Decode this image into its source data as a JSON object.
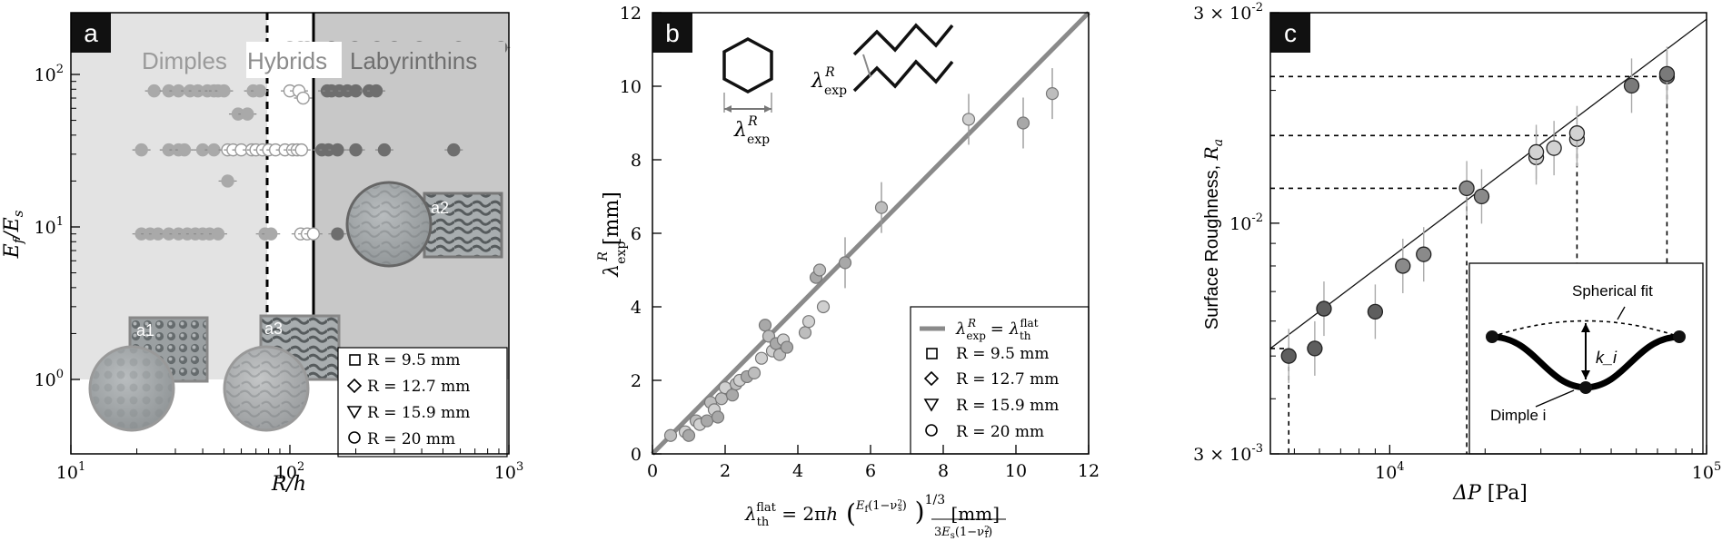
{
  "panels": {
    "a": {
      "letter": "a"
    },
    "b": {
      "letter": "b"
    },
    "c": {
      "letter": "c"
    }
  },
  "chart_data": [
    {
      "panel": "a",
      "type": "scatter",
      "title": "",
      "xlabel": "R/h",
      "ylabel": "E_f/E_s",
      "xscale": "log",
      "yscale": "log",
      "xlim": [
        10,
        1000
      ],
      "ylim": [
        1,
        150
      ],
      "xticks": [
        "10^1",
        "10^2",
        "10^3"
      ],
      "yticks": [
        "10^0",
        "10^1",
        "10^2"
      ],
      "regions": [
        "Dimples",
        "Hybrids",
        "Labyrinthins"
      ],
      "boundaries": [
        80,
        130
      ],
      "inset_labels": [
        "a1",
        "a2",
        "a3"
      ],
      "legend": [
        "R = 9.5 mm",
        "R = 12.7 mm",
        "R = 15.9 mm",
        "R = 20 mm"
      ],
      "legend_position": "bottom-right",
      "series": [
        {
          "regime": "Dimples",
          "points": [
            [
              21,
              9
            ],
            [
              23,
              9
            ],
            [
              25,
              9
            ],
            [
              28,
              9
            ],
            [
              31,
              9
            ],
            [
              34,
              9
            ],
            [
              37,
              9
            ],
            [
              40,
              9
            ],
            [
              43,
              9
            ],
            [
              47,
              9
            ],
            [
              77,
              9
            ],
            [
              82,
              9
            ],
            [
              21,
              32
            ],
            [
              28,
              32
            ],
            [
              31,
              32
            ],
            [
              33,
              32
            ],
            [
              40,
              32
            ],
            [
              45,
              32
            ],
            [
              52,
              20
            ],
            [
              24,
              78
            ],
            [
              28,
              78
            ],
            [
              31,
              78
            ],
            [
              35,
              78
            ],
            [
              38,
              78
            ],
            [
              42,
              78
            ],
            [
              45,
              78
            ],
            [
              47,
              78
            ],
            [
              50,
              78
            ],
            [
              58,
              55
            ],
            [
              64,
              55
            ],
            [
              68,
              78
            ],
            [
              73,
              78
            ]
          ]
        },
        {
          "regime": "Hybrids",
          "points": [
            [
              52,
              32
            ],
            [
              55,
              32
            ],
            [
              60,
              32
            ],
            [
              67,
              32
            ],
            [
              70,
              32
            ],
            [
              75,
              32
            ],
            [
              80,
              32
            ],
            [
              86,
              32
            ],
            [
              95,
              32
            ],
            [
              103,
              32
            ],
            [
              108,
              32
            ],
            [
              113,
              32
            ],
            [
              100,
              78
            ],
            [
              110,
              78
            ],
            [
              115,
              70
            ],
            [
              100,
              150
            ],
            [
              112,
              150
            ],
            [
              120,
              150
            ],
            [
              112,
              9
            ],
            [
              120,
              9
            ],
            [
              128,
              9
            ]
          ]
        },
        {
          "regime": "Labyrinthins",
          "points": [
            [
              155,
              150
            ],
            [
              198,
              150
            ],
            [
              250,
              150
            ],
            [
              300,
              150
            ],
            [
              390,
              150
            ],
            [
              590,
              150
            ],
            [
              920,
              150
            ],
            [
              148,
              78
            ],
            [
              155,
              78
            ],
            [
              168,
              78
            ],
            [
              183,
              78
            ],
            [
              200,
              78
            ],
            [
              230,
              78
            ],
            [
              248,
              78
            ],
            [
              140,
              32
            ],
            [
              150,
              32
            ],
            [
              165,
              32
            ],
            [
              200,
              32
            ],
            [
              270,
              32
            ],
            [
              560,
              32
            ],
            [
              165,
              9
            ],
            [
              250,
              9
            ],
            [
              380,
              9
            ],
            [
              560,
              9
            ]
          ]
        }
      ]
    },
    {
      "panel": "b",
      "type": "scatter",
      "title": "",
      "xlabel": "λ_th^flat = 2πh ( E_f(1−ν_s²) / 3E_s(1−ν_f²) )^1/3 [mm]",
      "ylabel": "λ_exp^R [mm]",
      "xlim": [
        0,
        12
      ],
      "ylim": [
        0,
        12
      ],
      "xticks": [
        "0",
        "2",
        "4",
        "6",
        "8",
        "10",
        "12"
      ],
      "yticks": [
        "0",
        "2",
        "4",
        "6",
        "8",
        "10",
        "12"
      ],
      "line": {
        "label": "λ_exp^R = λ_th^flat",
        "slope": 1
      },
      "legend": [
        "λ_exp^R = λ_th^flat",
        "R = 9.5 mm",
        "R = 12.7 mm",
        "R = 15.9 mm",
        "R = 20 mm"
      ],
      "legend_position": "bottom-right",
      "schematic_labels": [
        "λ_exp^R",
        "λ_exp^R"
      ],
      "points": [
        [
          0.5,
          0.5
        ],
        [
          0.9,
          0.6
        ],
        [
          1.0,
          0.5
        ],
        [
          1.2,
          0.9
        ],
        [
          1.3,
          0.8
        ],
        [
          1.5,
          0.9
        ],
        [
          1.6,
          1.4
        ],
        [
          1.7,
          1.2
        ],
        [
          1.8,
          1.0
        ],
        [
          1.9,
          1.5
        ],
        [
          2.0,
          1.8
        ],
        [
          2.2,
          1.6
        ],
        [
          2.3,
          1.9
        ],
        [
          2.4,
          2.0
        ],
        [
          2.6,
          2.1
        ],
        [
          2.8,
          2.2
        ],
        [
          3.0,
          2.6
        ],
        [
          3.1,
          3.5
        ],
        [
          3.2,
          3.2
        ],
        [
          3.3,
          2.8
        ],
        [
          3.4,
          3.0
        ],
        [
          3.5,
          2.7
        ],
        [
          3.6,
          3.1
        ],
        [
          3.7,
          2.9
        ],
        [
          4.2,
          3.3
        ],
        [
          4.3,
          3.6
        ],
        [
          4.5,
          4.8
        ],
        [
          4.6,
          5.0
        ],
        [
          4.7,
          4.0
        ],
        [
          5.3,
          5.2
        ],
        [
          6.3,
          6.7
        ],
        [
          8.7,
          9.1
        ],
        [
          10.2,
          9.0
        ],
        [
          11.0,
          9.8
        ]
      ]
    },
    {
      "panel": "c",
      "type": "scatter",
      "title": "",
      "xlabel": "ΔP [Pa]",
      "ylabel": "Surface Roughness,  R_a",
      "xscale": "log",
      "yscale": "log",
      "xlim": [
        4200,
        100000
      ],
      "ylim": [
        0.003,
        0.03
      ],
      "xticks": [
        "10^4",
        "10^5"
      ],
      "yticks": [
        "3 × 10^-3",
        "10^-2",
        "3 × 10^-2"
      ],
      "fit_line": {
        "from": [
          4200,
          0.0052
        ],
        "to": [
          100000,
          0.029
        ]
      },
      "inset_labels": [
        "Spherical fit",
        "k_i",
        "Dimple i"
      ],
      "points": [
        [
          4800,
          0.005
        ],
        [
          5800,
          0.0052
        ],
        [
          6200,
          0.0064
        ],
        [
          9000,
          0.0063
        ],
        [
          11000,
          0.008
        ],
        [
          12800,
          0.0085
        ],
        [
          17500,
          0.012
        ],
        [
          19500,
          0.0115
        ],
        [
          29000,
          0.0141
        ],
        [
          29000,
          0.0145
        ],
        [
          33000,
          0.0148
        ],
        [
          39000,
          0.0155
        ],
        [
          39000,
          0.016
        ],
        [
          58000,
          0.0205
        ],
        [
          75000,
          0.0215
        ],
        [
          75000,
          0.0218
        ]
      ],
      "dashed_levels": [
        0.0052,
        0.012,
        0.0158,
        0.0215
      ],
      "dashed_x": [
        4800,
        17500,
        39000,
        75000
      ]
    }
  ]
}
